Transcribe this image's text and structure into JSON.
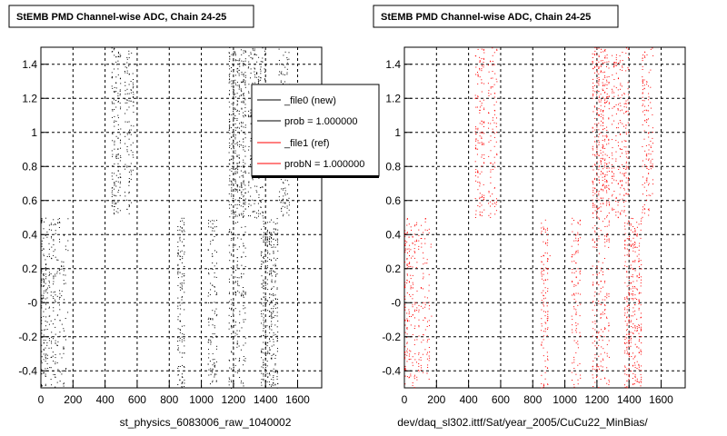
{
  "chart_data": [
    {
      "type": "scatter",
      "title": "StEMB PMD Channel-wise ADC, Chain 24-25",
      "xlabel": "st_physics_6083006_raw_1040002",
      "ylabel": "",
      "xlim": [
        0,
        1750
      ],
      "ylim": [
        -0.5,
        1.5
      ],
      "xticks": [
        0,
        200,
        400,
        600,
        800,
        1000,
        1200,
        1400,
        1600
      ],
      "yticks": [
        -0.4,
        -0.2,
        0,
        0.2,
        0.4,
        0.6,
        0.8,
        1,
        1.2,
        1.4
      ],
      "ytick_labels": [
        "-0.4",
        "-0.2",
        "-0",
        "0.2",
        "0.4",
        "0.6",
        "0.8",
        "1",
        "1.2",
        "1.4"
      ],
      "grid": true,
      "point_color": "#000000",
      "series": [
        {
          "bands": [
            {
              "x": [
                0,
                35
              ],
              "y": [
                -0.5,
                0.5
              ],
              "density": 0.9
            },
            {
              "x": [
                35,
                100
              ],
              "y": [
                -0.5,
                0.5
              ],
              "density": 0.45
            },
            {
              "x": [
                100,
                165
              ],
              "y": [
                -0.5,
                0.5
              ],
              "density": 0.3
            },
            {
              "x": [
                440,
                500
              ],
              "y": [
                0.5,
                1.5
              ],
              "density": 0.7
            },
            {
              "x": [
                520,
                580
              ],
              "y": [
                0.5,
                1.5
              ],
              "density": 0.45
            },
            {
              "x": [
                850,
                900
              ],
              "y": [
                -0.5,
                0.5
              ],
              "density": 0.7
            },
            {
              "x": [
                1040,
                1100
              ],
              "y": [
                -0.5,
                0.5
              ],
              "density": 0.5
            },
            {
              "x": [
                1170,
                1280
              ],
              "y": [
                0.5,
                1.5
              ],
              "density": 0.9
            },
            {
              "x": [
                1170,
                1280
              ],
              "y": [
                -0.5,
                0.5
              ],
              "density": 0.45
            },
            {
              "x": [
                1290,
                1400
              ],
              "y": [
                0.5,
                1.5
              ],
              "density": 0.55
            },
            {
              "x": [
                1370,
                1480
              ],
              "y": [
                -0.5,
                0.5
              ],
              "density": 0.85
            },
            {
              "x": [
                1480,
                1550
              ],
              "y": [
                0.5,
                1.5
              ],
              "density": 0.55
            }
          ]
        }
      ],
      "legend": {
        "placement": "top-right",
        "entries": [
          {
            "label": "_file0 (new)",
            "color": "#000000"
          },
          {
            "label": "prob = 1.000000",
            "color": "#000000"
          },
          {
            "label": "_file1 (ref)",
            "color": "#ff0000"
          },
          {
            "label": "probN = 1.000000",
            "color": "#ff0000"
          }
        ]
      }
    },
    {
      "type": "scatter",
      "title": "StEMB PMD Channel-wise ADC, Chain 24-25",
      "xlabel": "dev/daq_sl302.ittf/Sat/year_2005/CuCu22_MinBias/",
      "ylabel": "",
      "xlim": [
        0,
        1750
      ],
      "ylim": [
        -0.5,
        1.5
      ],
      "xticks": [
        0,
        200,
        400,
        600,
        800,
        1000,
        1200,
        1400,
        1600
      ],
      "yticks": [
        -0.4,
        -0.2,
        0,
        0.2,
        0.4,
        0.6,
        0.8,
        1,
        1.2,
        1.4
      ],
      "ytick_labels": [
        "-0.4",
        "-0.2",
        "-0",
        "0.2",
        "0.4",
        "0.6",
        "0.8",
        "1",
        "1.2",
        "1.4"
      ],
      "grid": true,
      "point_color": "#ff0000",
      "series": [
        {
          "bands": [
            {
              "x": [
                0,
                35
              ],
              "y": [
                -0.5,
                0.5
              ],
              "density": 0.8
            },
            {
              "x": [
                35,
                100
              ],
              "y": [
                -0.5,
                0.5
              ],
              "density": 0.4
            },
            {
              "x": [
                100,
                165
              ],
              "y": [
                -0.5,
                0.5
              ],
              "density": 0.3
            },
            {
              "x": [
                440,
                500
              ],
              "y": [
                0.5,
                1.5
              ],
              "density": 0.6
            },
            {
              "x": [
                520,
                580
              ],
              "y": [
                0.5,
                1.5
              ],
              "density": 0.4
            },
            {
              "x": [
                850,
                900
              ],
              "y": [
                -0.5,
                0.5
              ],
              "density": 0.6
            },
            {
              "x": [
                1040,
                1100
              ],
              "y": [
                -0.5,
                0.5
              ],
              "density": 0.45
            },
            {
              "x": [
                1170,
                1280
              ],
              "y": [
                0.5,
                1.5
              ],
              "density": 0.8
            },
            {
              "x": [
                1170,
                1280
              ],
              "y": [
                -0.5,
                0.5
              ],
              "density": 0.4
            },
            {
              "x": [
                1290,
                1400
              ],
              "y": [
                0.5,
                1.5
              ],
              "density": 0.5
            },
            {
              "x": [
                1370,
                1480
              ],
              "y": [
                -0.5,
                0.5
              ],
              "density": 0.75
            },
            {
              "x": [
                1480,
                1550
              ],
              "y": [
                0.5,
                1.5
              ],
              "density": 0.5
            }
          ]
        }
      ]
    }
  ]
}
